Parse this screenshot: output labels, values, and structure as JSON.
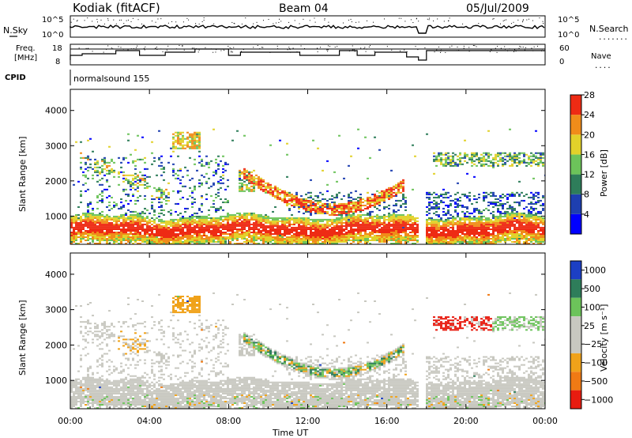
{
  "header": {
    "station": "Kodiak (fitACF)",
    "beam": "Beam 04",
    "date": "05/Jul/2009"
  },
  "status_panels": {
    "nsky_label": "N.Sky",
    "nsky_ticks": [
      "10^5",
      "10^0"
    ],
    "nsearch_label": "N.Search",
    "nsearch_ticks": [
      "10^5",
      "10^0"
    ],
    "freq_label_1": "Freq.",
    "freq_label_2": "[MHz]",
    "freq_ticks": [
      "18",
      "8"
    ],
    "nave_label": "Nave",
    "nave_ticks": [
      "60",
      "0"
    ],
    "cpid_label": "CPID",
    "cpid_value": "normalsound 155"
  },
  "chart_data": [
    {
      "type": "heatmap",
      "name": "power",
      "ylabel": "Slant Range [km]",
      "y_ticks": [
        1000,
        2000,
        3000,
        4000
      ],
      "ylim": [
        200,
        4600
      ],
      "xlabel": "Time UT",
      "x_ticks": [
        "00:00",
        "04:00",
        "08:00",
        "12:00",
        "16:00",
        "20:00",
        "00:00"
      ],
      "xlim_hours": [
        0,
        24
      ],
      "colorbar": {
        "label": "Power [dB]",
        "ticks": [
          "4",
          "8",
          "12",
          "16",
          "20",
          "24",
          "28"
        ],
        "colors": [
          "#0000ff",
          "#1e3fb0",
          "#2e7d5a",
          "#6cc35a",
          "#e2d12a",
          "#f08c1a",
          "#ee2b14"
        ]
      },
      "data_gap_hours": [
        17.6,
        18.0
      ]
    },
    {
      "type": "heatmap",
      "name": "velocity",
      "ylabel": "Slant Range [km]",
      "y_ticks": [
        1000,
        2000,
        3000,
        4000
      ],
      "ylim": [
        200,
        4600
      ],
      "xlabel": "Time UT",
      "x_ticks": [
        "00:00",
        "04:00",
        "08:00",
        "12:00",
        "16:00",
        "20:00",
        "00:00"
      ],
      "xlim_hours": [
        0,
        24
      ],
      "colorbar": {
        "label": "Velocity [m s⁻¹]",
        "ticks": [
          "1000",
          "500",
          "100",
          "25",
          "−25",
          "−100",
          "−500",
          "−1000"
        ],
        "colors": [
          "#1c3fc4",
          "#2e7d5a",
          "#6cc35a",
          "#c8c8c0",
          "#c8c8c0",
          "#f0a21a",
          "#f07a14",
          "#e81c10"
        ]
      },
      "data_gap_hours": [
        17.6,
        18.0
      ]
    }
  ]
}
